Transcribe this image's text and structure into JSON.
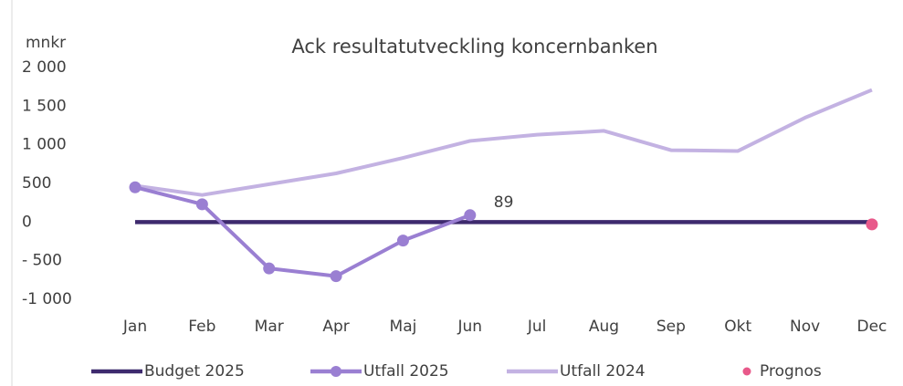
{
  "chart_data": {
    "type": "line",
    "title": "Ack resultatutveckling koncernbanken",
    "y_label": "mnkr",
    "categories": [
      "Jan",
      "Feb",
      "Mar",
      "Apr",
      "Maj",
      "Jun",
      "Jul",
      "Aug",
      "Sep",
      "Okt",
      "Nov",
      "Dec"
    ],
    "series": [
      {
        "name": "Budget 2025",
        "color": "#3e2a6e",
        "line": true,
        "marker": false,
        "values": [
          0,
          0,
          0,
          0,
          0,
          0,
          0,
          0,
          0,
          0,
          0,
          0
        ]
      },
      {
        "name": "Utfall 2025",
        "color": "#9a7fd2",
        "line": true,
        "marker": true,
        "values": [
          450,
          230,
          -600,
          -700,
          -240,
          89,
          null,
          null,
          null,
          null,
          null,
          null
        ]
      },
      {
        "name": "Utfall 2024",
        "color": "#c3b2e2",
        "line": true,
        "marker": false,
        "values": [
          470,
          350,
          490,
          630,
          830,
          1050,
          1130,
          1180,
          930,
          920,
          1350,
          1710
        ]
      },
      {
        "name": "Prognos",
        "color": "#e8598a",
        "line": false,
        "marker": true,
        "values": [
          null,
          null,
          null,
          null,
          null,
          null,
          null,
          null,
          null,
          null,
          null,
          -30
        ]
      }
    ],
    "ylim": [
      -1000,
      2000
    ],
    "yticks": [
      {
        "value": -1000,
        "label": "-1 000"
      },
      {
        "value": -500,
        "label": "- 500"
      },
      0,
      500,
      {
        "value": 1000,
        "label": "1 000"
      },
      {
        "value": 1500,
        "label": "1 500"
      },
      {
        "value": 2000,
        "label": "2 000"
      }
    ],
    "grid": false,
    "legend": "bottom"
  }
}
